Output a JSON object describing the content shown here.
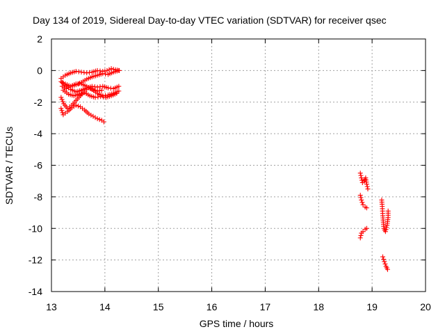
{
  "chart_data": {
    "type": "scatter",
    "title": "Day 134 of 2019, Sidereal Day-to-day VTEC variation (SDTVAR) for receiver qsec",
    "xlabel": "GPS time / hours",
    "ylabel": "SDTVAR / TECUs",
    "xlim": [
      13,
      20
    ],
    "ylim": [
      -14,
      2
    ],
    "xticks": [
      "13",
      "14",
      "15",
      "16",
      "17",
      "18",
      "19",
      "20"
    ],
    "yticks": [
      "2",
      "0",
      "-2",
      "-4",
      "-6",
      "-8",
      "-10",
      "-12",
      "-14"
    ],
    "grid": true,
    "marker": "+",
    "color": "#ff0000",
    "series": [
      {
        "name": "SDTVAR",
        "tracks": [
          [
            [
              13.18,
              -0.5
            ],
            [
              13.26,
              -0.3
            ],
            [
              13.36,
              -0.15
            ],
            [
              13.46,
              -0.05
            ],
            [
              13.56,
              -0.1
            ],
            [
              13.66,
              -0.15
            ],
            [
              13.76,
              -0.1
            ],
            [
              13.86,
              0.0
            ],
            [
              13.96,
              -0.05
            ],
            [
              14.04,
              0.0
            ],
            [
              14.12,
              0.12
            ],
            [
              14.2,
              0.05
            ],
            [
              14.27,
              0.0
            ]
          ],
          [
            [
              13.18,
              -0.7
            ],
            [
              13.26,
              -0.85
            ],
            [
              13.36,
              -1.0
            ],
            [
              13.46,
              -0.9
            ],
            [
              13.56,
              -0.75
            ],
            [
              13.66,
              -0.55
            ],
            [
              13.76,
              -0.4
            ],
            [
              13.86,
              -0.3
            ],
            [
              13.96,
              -0.2
            ],
            [
              14.06,
              -0.25
            ],
            [
              14.16,
              -0.1
            ],
            [
              14.26,
              0.0
            ]
          ],
          [
            [
              13.2,
              -0.75
            ],
            [
              13.28,
              -1.0
            ],
            [
              13.36,
              -1.2
            ],
            [
              13.46,
              -1.35
            ],
            [
              13.56,
              -1.25
            ],
            [
              13.66,
              -1.1
            ],
            [
              13.76,
              -1.0
            ],
            [
              13.86,
              -1.05
            ],
            [
              13.96,
              -1.0
            ],
            [
              14.06,
              -1.1
            ],
            [
              14.16,
              -1.15
            ],
            [
              14.26,
              -1.0
            ]
          ],
          [
            [
              13.2,
              -1.0
            ],
            [
              13.28,
              -1.15
            ],
            [
              13.36,
              -1.0
            ],
            [
              13.46,
              -0.85
            ],
            [
              13.56,
              -0.85
            ],
            [
              13.66,
              -1.0
            ],
            [
              13.76,
              -1.2
            ],
            [
              13.86,
              -1.45
            ],
            [
              13.96,
              -1.6
            ],
            [
              14.06,
              -1.55
            ],
            [
              14.16,
              -1.45
            ],
            [
              14.26,
              -1.3
            ]
          ],
          [
            [
              13.22,
              -1.25
            ],
            [
              13.32,
              -1.5
            ],
            [
              13.42,
              -1.6
            ],
            [
              13.52,
              -1.5
            ],
            [
              13.62,
              -1.4
            ],
            [
              13.72,
              -1.6
            ],
            [
              13.82,
              -1.7
            ],
            [
              13.92,
              -1.65
            ],
            [
              14.02,
              -1.7
            ],
            [
              14.12,
              -1.6
            ],
            [
              14.22,
              -1.45
            ]
          ],
          [
            [
              13.18,
              -1.7
            ],
            [
              13.23,
              -2.1
            ],
            [
              13.3,
              -2.4
            ],
            [
              13.38,
              -2.2
            ],
            [
              13.46,
              -1.9
            ],
            [
              13.54,
              -1.6
            ],
            [
              13.62,
              -1.3
            ],
            [
              13.7,
              -1.1
            ],
            [
              13.78,
              -1.2
            ],
            [
              13.86,
              -1.3
            ],
            [
              13.94,
              -1.25
            ]
          ],
          [
            [
              13.18,
              -2.4
            ],
            [
              13.22,
              -2.8
            ],
            [
              13.3,
              -2.6
            ],
            [
              13.38,
              -2.35
            ],
            [
              13.46,
              -2.2
            ],
            [
              13.54,
              -2.3
            ],
            [
              13.62,
              -2.5
            ],
            [
              13.7,
              -2.75
            ],
            [
              13.78,
              -2.9
            ],
            [
              13.86,
              -3.05
            ],
            [
              13.94,
              -3.15
            ],
            [
              13.98,
              -3.25
            ]
          ],
          [
            [
              18.78,
              -6.5
            ],
            [
              18.8,
              -6.8
            ],
            [
              18.82,
              -7.1
            ],
            [
              18.85,
              -7.0
            ],
            [
              18.88,
              -6.8
            ],
            [
              18.9,
              -7.2
            ],
            [
              18.92,
              -7.5
            ]
          ],
          [
            [
              18.78,
              -7.9
            ],
            [
              18.8,
              -8.2
            ],
            [
              18.83,
              -8.5
            ],
            [
              18.87,
              -8.65
            ],
            [
              18.9,
              -8.7
            ]
          ],
          [
            [
              18.78,
              -10.6
            ],
            [
              18.8,
              -10.3
            ],
            [
              18.83,
              -10.2
            ],
            [
              18.87,
              -10.05
            ],
            [
              18.9,
              -10.0
            ]
          ],
          [
            [
              19.18,
              -8.2
            ],
            [
              19.19,
              -8.6
            ],
            [
              19.2,
              -9.2
            ],
            [
              19.21,
              -9.6
            ],
            [
              19.22,
              -10.0
            ],
            [
              19.25,
              -10.2
            ],
            [
              19.28,
              -9.8
            ],
            [
              19.3,
              -9.3
            ],
            [
              19.3,
              -8.9
            ]
          ],
          [
            [
              19.2,
              -11.8
            ],
            [
              19.23,
              -12.1
            ],
            [
              19.26,
              -12.4
            ],
            [
              19.29,
              -12.6
            ]
          ]
        ]
      }
    ]
  }
}
